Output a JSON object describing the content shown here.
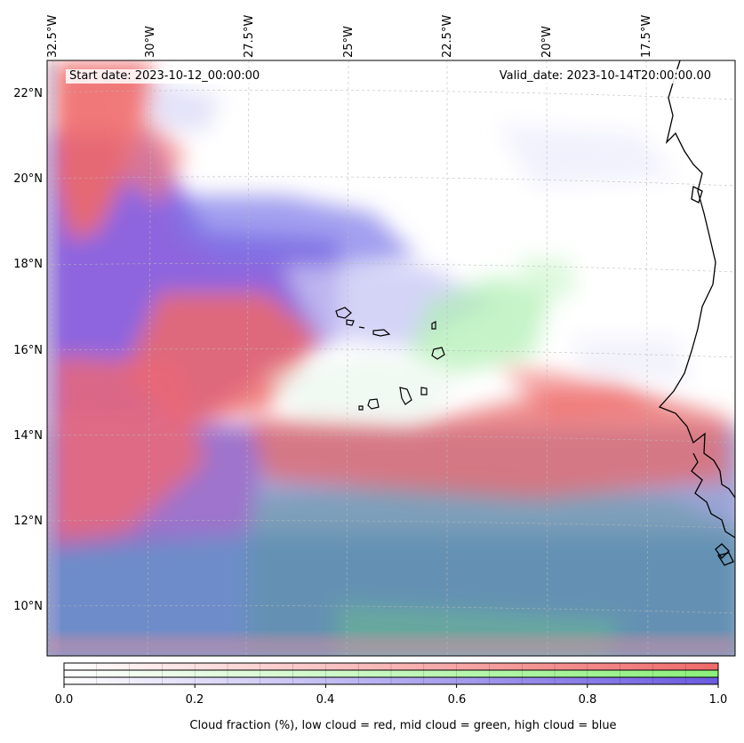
{
  "map": {
    "region": "Cape Verde / West African coast",
    "info": {
      "start_date": "Start date: 2023-10-12_00:00:00",
      "valid_date": "Valid_date: 2023-10-14T20:00:00.00"
    },
    "lon_labels": [
      "32.5°W",
      "30°W",
      "27.5°W",
      "25°W",
      "22.5°W",
      "20°W",
      "17.5°W"
    ],
    "lat_labels": [
      "22°N",
      "20°N",
      "18°N",
      "16°N",
      "14°N",
      "12°N",
      "10°N"
    ],
    "grid": true,
    "coastline_color": "#000000"
  },
  "colorbar": {
    "ticks": [
      "0.0",
      "0.2",
      "0.4",
      "0.6",
      "0.8",
      "1.0"
    ],
    "label": "Cloud fraction (%), low cloud = red, mid cloud = green, high cloud = blue",
    "colors": {
      "low": "#f06a6a",
      "mid": "#8af07a",
      "high": "#6a5ae0"
    }
  }
}
